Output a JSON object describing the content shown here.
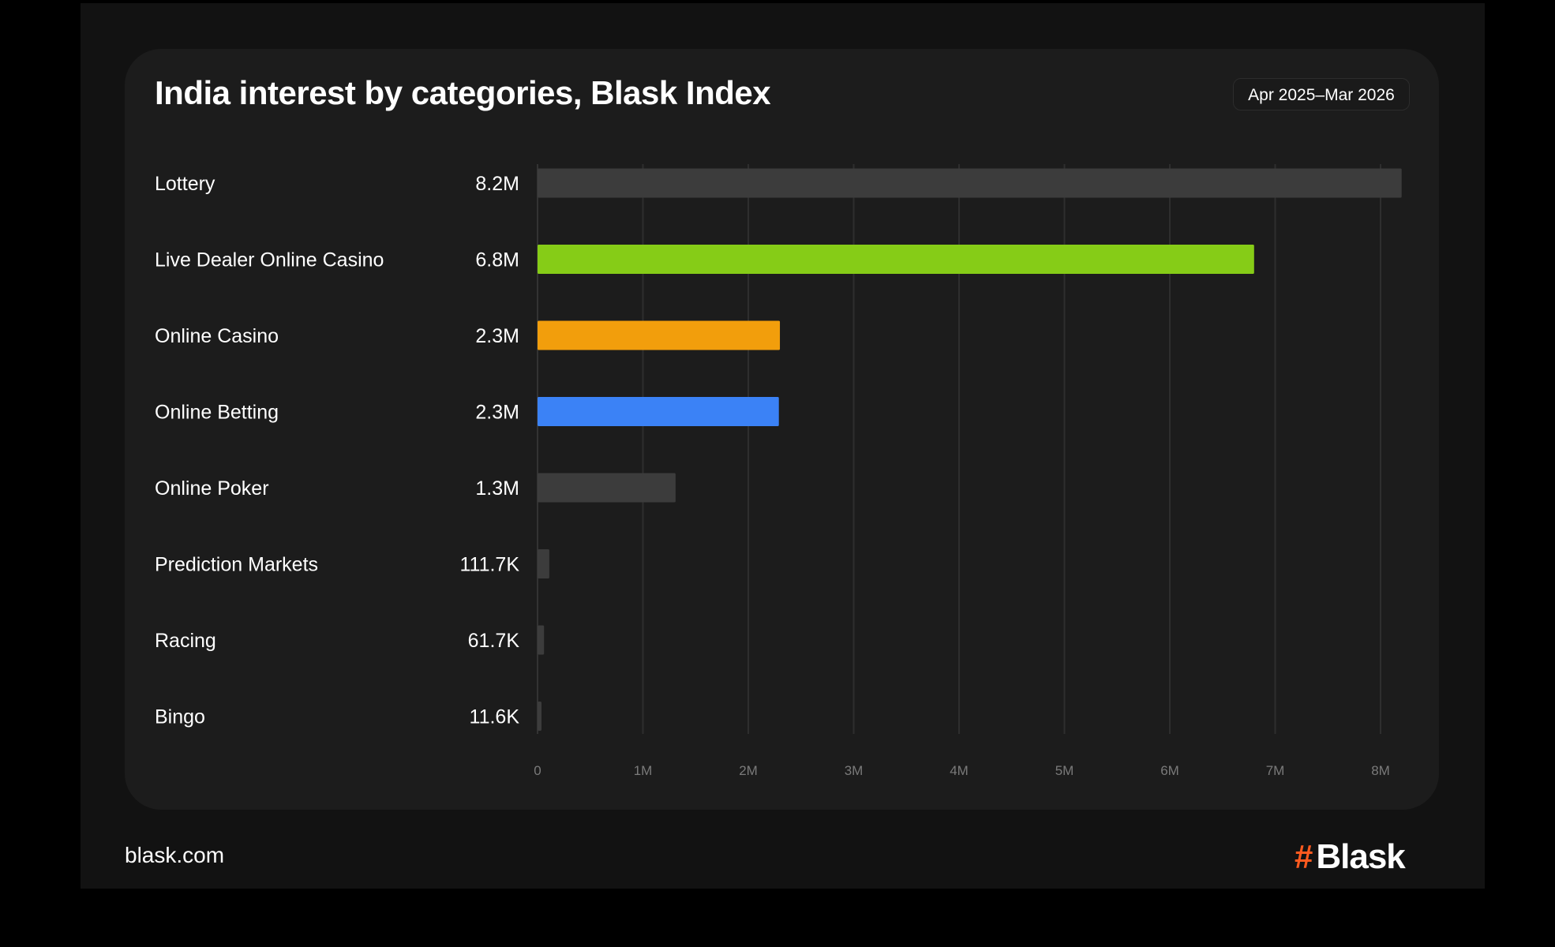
{
  "header": {
    "title": "India interest by categories, Blask Index",
    "date_range": "Apr 2025–Mar 2026"
  },
  "footer": {
    "url": "blask.com",
    "brand": "Blask",
    "brand_mark": "#"
  },
  "colors": {
    "background": "#121212",
    "card": "#1c1c1c",
    "bar_default": "#3c3c3c",
    "bar_live_dealer": "#86cc17",
    "bar_online_casino": "#f29e0c",
    "bar_online_betting": "#3b82f6",
    "brand_accent": "#ff5a1f"
  },
  "chart_data": {
    "type": "bar",
    "orientation": "horizontal",
    "categories": [
      "Lottery",
      "Live Dealer Online Casino",
      "Online Casino",
      "Online Betting",
      "Online Poker",
      "Prediction Markets",
      "Racing",
      "Bingo"
    ],
    "values": [
      8200000,
      6800000,
      2300000,
      2290000,
      1310000,
      111700,
      61700,
      11600
    ],
    "value_labels": [
      "8.2M",
      "6.8M",
      "2.3M",
      "2.3M",
      "1.3M",
      "111.7K",
      "61.7K",
      "11.6K"
    ],
    "bar_colors": [
      "#3c3c3c",
      "#86cc17",
      "#f29e0c",
      "#3b82f6",
      "#3c3c3c",
      "#3c3c3c",
      "#3c3c3c",
      "#3c3c3c"
    ],
    "xlim": [
      0,
      8200000
    ],
    "x_ticks": [
      0,
      1000000,
      2000000,
      3000000,
      4000000,
      5000000,
      6000000,
      7000000,
      8000000
    ],
    "x_tick_labels": [
      "0",
      "1M",
      "2M",
      "3M",
      "4M",
      "5M",
      "6M",
      "7M",
      "8M"
    ],
    "grid": true,
    "legend": "none"
  }
}
